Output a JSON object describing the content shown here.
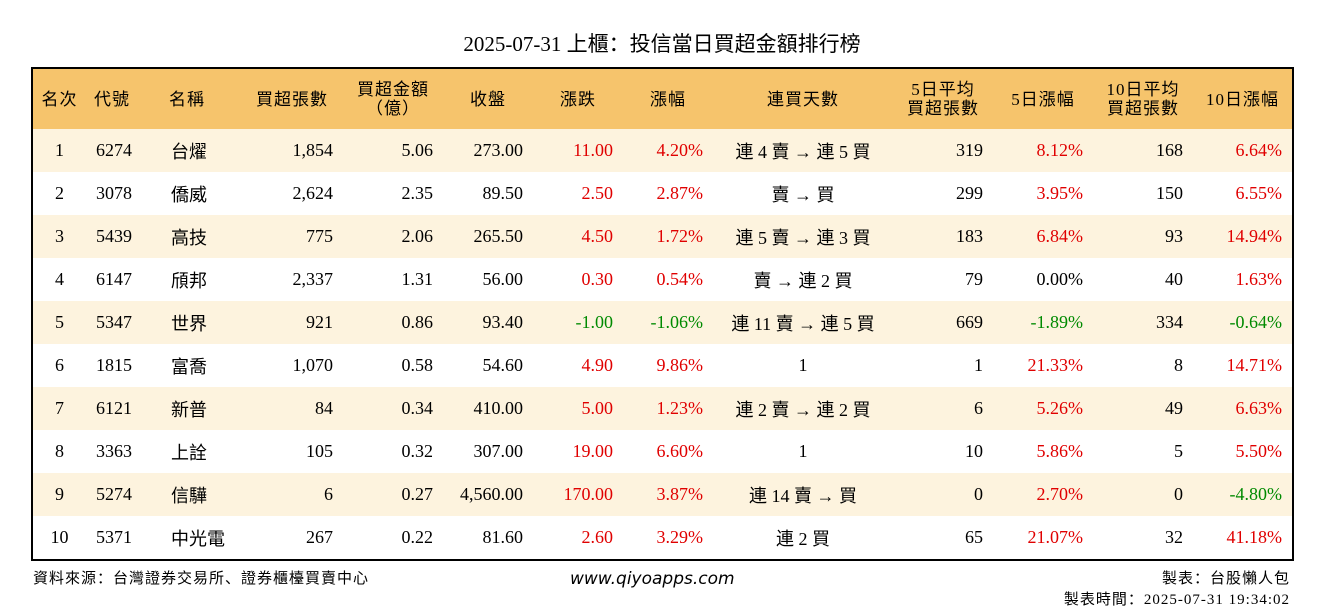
{
  "header": {
    "title": "2025-07-31 上櫃：投信當日買超金額排行榜"
  },
  "table": {
    "columns": [
      "名次",
      "代號",
      "名稱",
      "買超張數",
      "買超金額\n（億）",
      "收盤",
      "漲跌",
      "漲幅",
      "連買天數",
      "5日平均\n買超張數",
      "5日漲幅",
      "10日平均\n買超張數",
      "10日漲幅"
    ],
    "rows": [
      [
        "1",
        "6274",
        "台燿",
        "1,854",
        "5.06",
        "273.00",
        "11.00",
        "4.20%",
        "連 4 賣 → 連 5 買",
        "319",
        "8.12%",
        "168",
        "6.64%"
      ],
      [
        "2",
        "3078",
        "僑威",
        "2,624",
        "2.35",
        "89.50",
        "2.50",
        "2.87%",
        "賣 → 買",
        "299",
        "3.95%",
        "150",
        "6.55%"
      ],
      [
        "3",
        "5439",
        "高技",
        "775",
        "2.06",
        "265.50",
        "4.50",
        "1.72%",
        "連 5 賣 → 連 3 買",
        "183",
        "6.84%",
        "93",
        "14.94%"
      ],
      [
        "4",
        "6147",
        "頎邦",
        "2,337",
        "1.31",
        "56.00",
        "0.30",
        "0.54%",
        "賣 → 連 2 買",
        "79",
        "0.00%",
        "40",
        "1.63%"
      ],
      [
        "5",
        "5347",
        "世界",
        "921",
        "0.86",
        "93.40",
        "-1.00",
        "-1.06%",
        "連 11 賣 → 連 5 買",
        "669",
        "-1.89%",
        "334",
        "-0.64%"
      ],
      [
        "6",
        "1815",
        "富喬",
        "1,070",
        "0.58",
        "54.60",
        "4.90",
        "9.86%",
        "1",
        "1",
        "21.33%",
        "8",
        "14.71%"
      ],
      [
        "7",
        "6121",
        "新普",
        "84",
        "0.34",
        "410.00",
        "5.00",
        "1.23%",
        "連 2 賣 → 連 2 買",
        "6",
        "5.26%",
        "49",
        "6.63%"
      ],
      [
        "8",
        "3363",
        "上詮",
        "105",
        "0.32",
        "307.00",
        "19.00",
        "6.60%",
        "1",
        "10",
        "5.86%",
        "5",
        "5.50%"
      ],
      [
        "9",
        "5274",
        "信驊",
        "6",
        "0.27",
        "4,560.00",
        "170.00",
        "3.87%",
        "連 14 賣 → 買",
        "0",
        "2.70%",
        "0",
        "-4.80%"
      ],
      [
        "10",
        "5371",
        "中光電",
        "267",
        "0.22",
        "81.60",
        "2.60",
        "3.29%",
        "連 2 買",
        "65",
        "21.07%",
        "32",
        "41.18%"
      ]
    ]
  },
  "footer": {
    "source": "資料來源：台灣證券交易所、證券櫃檯買賣中心",
    "website": "www.qiyoapps.com",
    "maker": "製表：台股懶人包",
    "time": "製表時間：2025-07-31 19:34:02"
  }
}
